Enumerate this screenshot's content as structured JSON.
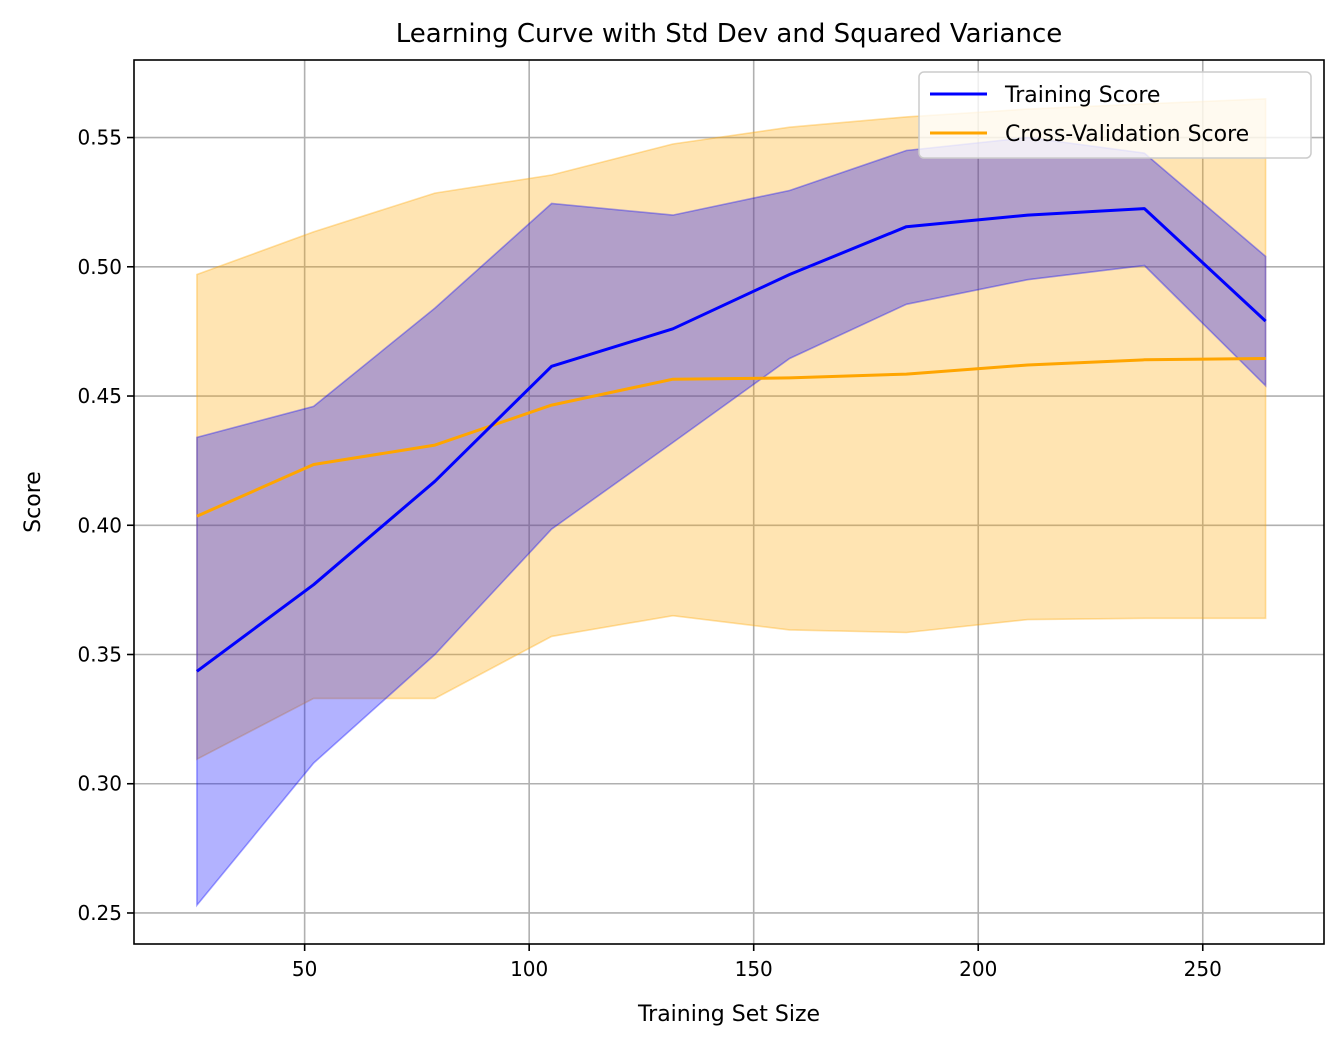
{
  "chart_data": {
    "type": "line",
    "title": "Learning Curve with Std Dev and Squared Variance",
    "xlabel": "Training Set Size",
    "ylabel": "Score",
    "xlim": [
      12,
      277
    ],
    "ylim": [
      0.238,
      0.58
    ],
    "xticks": [
      50,
      100,
      150,
      200,
      250
    ],
    "yticks": [
      0.25,
      0.3,
      0.35,
      0.4,
      0.45,
      0.5,
      0.55
    ],
    "ytick_labels": [
      "0.25",
      "0.30",
      "0.35",
      "0.40",
      "0.45",
      "0.50",
      "0.55"
    ],
    "grid": true,
    "legend_placement": "upper-right",
    "x": [
      26,
      52,
      79,
      105,
      132,
      158,
      184,
      211,
      237,
      264
    ],
    "series": [
      {
        "name": "Training Score",
        "color": "#0000ff",
        "band_color": "#0000ff",
        "values": [
          0.3435,
          0.377,
          0.417,
          0.4615,
          0.476,
          0.497,
          0.5155,
          0.52,
          0.5225,
          0.479
        ],
        "band_upper": [
          0.434,
          0.446,
          0.484,
          0.5245,
          0.52,
          0.5295,
          0.545,
          0.55,
          0.544,
          0.504
        ],
        "band_lower": [
          0.253,
          0.308,
          0.35,
          0.3985,
          0.432,
          0.4645,
          0.4855,
          0.495,
          0.5005,
          0.454
        ]
      },
      {
        "name": "Cross-Validation Score",
        "color": "#ffa500",
        "band_color": "#ffa500",
        "values": [
          0.4035,
          0.4235,
          0.431,
          0.4465,
          0.4565,
          0.457,
          0.4585,
          0.462,
          0.464,
          0.4645
        ],
        "band_upper": [
          0.497,
          0.5135,
          0.5285,
          0.5355,
          0.5475,
          0.554,
          0.558,
          0.561,
          0.563,
          0.565
        ],
        "band_lower": [
          0.3095,
          0.333,
          0.333,
          0.357,
          0.365,
          0.3595,
          0.3585,
          0.3635,
          0.364,
          0.364
        ]
      }
    ]
  }
}
